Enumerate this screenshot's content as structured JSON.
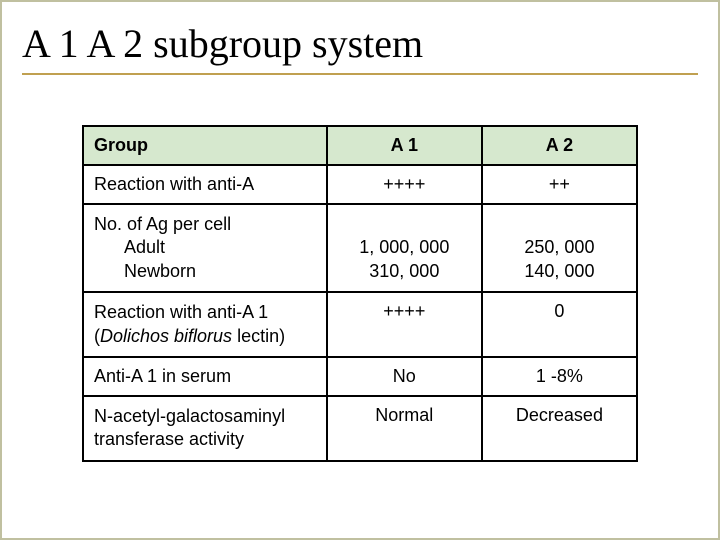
{
  "title": "A 1 A 2 subgroup system",
  "table": {
    "header_bg": "#d6e8ce",
    "border_color": "#000000",
    "columns": [
      "Group",
      "A 1",
      "A 2"
    ],
    "rows": [
      {
        "label": "Reaction with anti-A",
        "a1": "++++",
        "a2": "++"
      },
      {
        "label_line1": "No. of Ag per cell",
        "label_sub1": "Adult",
        "label_sub2": "Newborn",
        "a1_line1": "",
        "a1_line2": "1, 000, 000",
        "a1_line3": "310, 000",
        "a2_line1": "",
        "a2_line2": "250, 000",
        "a2_line3": "140, 000"
      },
      {
        "label_line1": "Reaction with anti-A 1",
        "label_line2_open": "(",
        "label_line2_italic": "Dolichos biflorus",
        "label_line2_close": " lectin)",
        "a1": "++++",
        "a2": "0"
      },
      {
        "label": "Anti-A 1 in serum",
        "a1": "No",
        "a2": "1 -8%"
      },
      {
        "label_line1": "N-acetyl-galactosaminyl",
        "label_line2": "transferase activity",
        "a1": "Normal",
        "a2": "Decreased"
      }
    ]
  }
}
